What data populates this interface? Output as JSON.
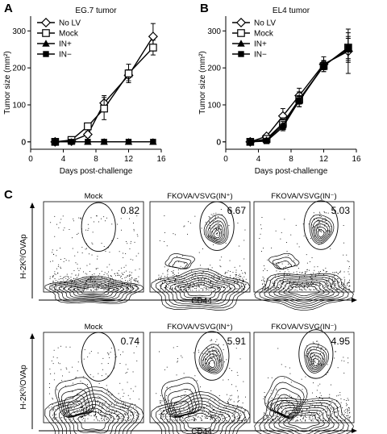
{
  "chart_data": [
    {
      "panel": "A",
      "type": "line",
      "title": "EG.7 tumor",
      "xlabel": "Days post-challenge",
      "ylabel": "Tumor size (mm²)",
      "xlim": [
        0,
        16
      ],
      "ylim": [
        -20,
        340
      ],
      "xticks": [
        0,
        4,
        8,
        12,
        16
      ],
      "yticks": [
        0,
        100,
        200,
        300
      ],
      "legend": "top-left",
      "series": [
        {
          "name": "No LV",
          "marker": "diamond-open",
          "x": [
            3,
            5,
            7,
            9,
            12,
            15
          ],
          "y": [
            0,
            2,
            20,
            105,
            180,
            285
          ],
          "err": [
            0,
            3,
            8,
            20,
            15,
            35
          ]
        },
        {
          "name": "Mock",
          "marker": "square-open",
          "x": [
            3,
            5,
            7,
            9,
            12,
            15
          ],
          "y": [
            0,
            5,
            42,
            90,
            185,
            255
          ],
          "err": [
            0,
            5,
            8,
            30,
            25,
            20
          ]
        },
        {
          "name": "IN+",
          "marker": "triangle-filled",
          "x": [
            3,
            5,
            7,
            9,
            12,
            15
          ],
          "y": [
            0,
            0,
            0,
            0,
            0,
            0
          ],
          "err": [
            0,
            0,
            0,
            0,
            0,
            0
          ]
        },
        {
          "name": "IN−",
          "marker": "square-filled",
          "x": [
            3,
            5,
            7,
            9,
            12,
            15
          ],
          "y": [
            0,
            0,
            0,
            0,
            0,
            0
          ],
          "err": [
            0,
            0,
            0,
            0,
            0,
            0
          ]
        }
      ]
    },
    {
      "panel": "B",
      "type": "line",
      "title": "EL4 tumor",
      "xlabel": "Days post-challenge",
      "ylabel": "Tumor size (mm²)",
      "xlim": [
        0,
        16
      ],
      "ylim": [
        -20,
        340
      ],
      "xticks": [
        0,
        4,
        8,
        12,
        16
      ],
      "yticks": [
        0,
        100,
        200,
        300
      ],
      "legend": "top-left",
      "series": [
        {
          "name": "No LV",
          "marker": "diamond-open",
          "x": [
            3,
            5,
            7,
            9,
            12,
            15
          ],
          "y": [
            0,
            15,
            70,
            125,
            210,
            245
          ],
          "err": [
            0,
            5,
            20,
            20,
            20,
            60
          ]
        },
        {
          "name": "Mock",
          "marker": "square-open",
          "x": [
            3,
            5,
            7,
            9,
            12,
            15
          ],
          "y": [
            0,
            8,
            50,
            115,
            205,
            255
          ],
          "err": [
            0,
            5,
            15,
            20,
            15,
            40
          ]
        },
        {
          "name": "IN+",
          "marker": "triangle-filled",
          "x": [
            3,
            5,
            7,
            9,
            12,
            15
          ],
          "y": [
            0,
            5,
            45,
            110,
            208,
            250
          ],
          "err": [
            0,
            5,
            10,
            15,
            10,
            30
          ]
        },
        {
          "name": "IN−",
          "marker": "square-filled",
          "x": [
            3,
            5,
            7,
            9,
            12,
            15
          ],
          "y": [
            0,
            2,
            40,
            112,
            205,
            255
          ],
          "err": [
            0,
            3,
            10,
            10,
            10,
            30
          ]
        }
      ]
    },
    {
      "panel": "C",
      "type": "contour",
      "xlabel": "CD44",
      "ylabel": "H-2Kᵇ/OVAp",
      "rows": [
        [
          {
            "label": "Mock",
            "value": "0.82"
          },
          {
            "label": "FKOVA/VSVG(IN⁺)",
            "value": "6.67"
          },
          {
            "label": "FKOVA/VSVG(IN⁻)",
            "value": "5.03"
          }
        ],
        [
          {
            "label": "Mock",
            "value": "0.74"
          },
          {
            "label": "FKOVA/VSVG(IN⁺)",
            "value": "5.91"
          },
          {
            "label": "FKOVA/VSVG(IN⁻)",
            "value": "4.95"
          }
        ]
      ]
    }
  ]
}
